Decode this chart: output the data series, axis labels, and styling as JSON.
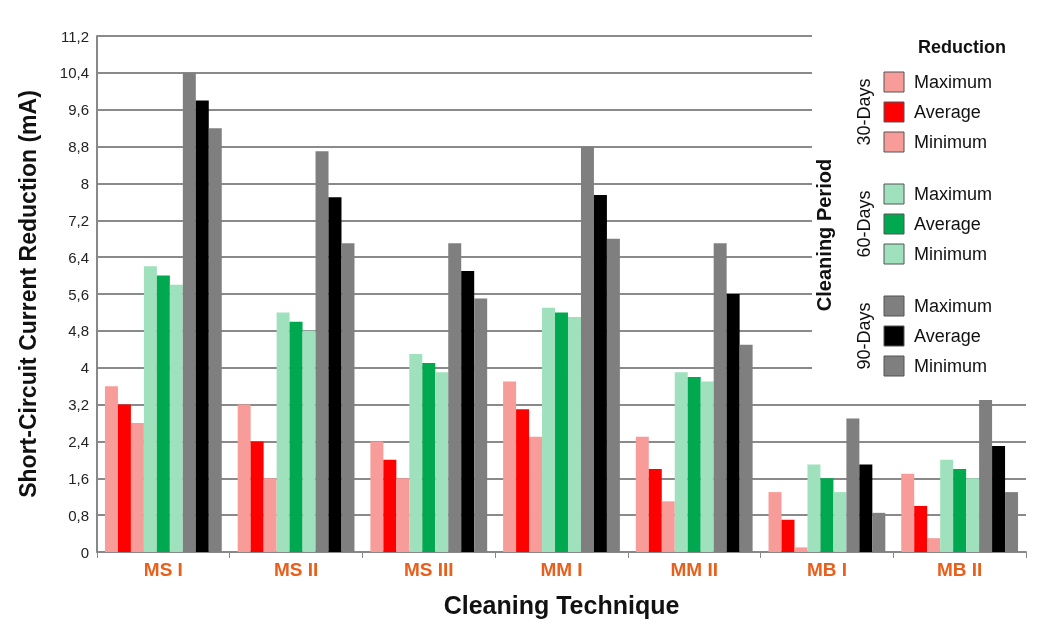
{
  "chart_data": {
    "type": "bar",
    "ylabel": "Short-Circuit Current Reduction (mA)",
    "xlabel": "Cleaning Technique",
    "legend_title": "Reduction",
    "annotations": [
      "Cleaning Period",
      "30-Days",
      "60-Days",
      "90-Days"
    ],
    "categories": [
      "MS I",
      "MS II",
      "MS III",
      "MM I",
      "MM II",
      "MB I",
      "MB II"
    ],
    "series": [
      {
        "name": "Maximum",
        "color": "#f79c98",
        "values": [
          3.6,
          3.2,
          2.4,
          3.7,
          2.5,
          1.3,
          1.7
        ]
      },
      {
        "name": "Average",
        "color": "#ff0000",
        "values": [
          3.2,
          2.4,
          2.0,
          3.1,
          1.8,
          0.7,
          1.0
        ]
      },
      {
        "name": "Minimum",
        "color": "#f79c98",
        "values": [
          2.8,
          1.6,
          1.6,
          2.5,
          1.1,
          0.1,
          0.3
        ]
      },
      {
        "name": "Maximum",
        "color": "#9fe1bd",
        "values": [
          6.2,
          5.2,
          4.3,
          5.3,
          3.9,
          1.9,
          2.0
        ]
      },
      {
        "name": "Average",
        "color": "#00a84f",
        "values": [
          6.0,
          5.0,
          4.1,
          5.2,
          3.8,
          1.6,
          1.8
        ]
      },
      {
        "name": "Minimum",
        "color": "#9fe1bd",
        "values": [
          5.8,
          4.8,
          3.9,
          5.1,
          3.7,
          1.3,
          1.6
        ]
      },
      {
        "name": "Maximum",
        "color": "#7f7f7f",
        "values": [
          10.4,
          8.7,
          6.7,
          8.8,
          6.7,
          2.9,
          3.3
        ]
      },
      {
        "name": "Average",
        "color": "#000000",
        "values": [
          9.8,
          7.7,
          6.1,
          7.75,
          5.6,
          1.9,
          2.3
        ]
      },
      {
        "name": "Minimum",
        "color": "#7f7f7f",
        "values": [
          9.2,
          6.7,
          5.5,
          6.8,
          4.5,
          0.85,
          1.3
        ]
      }
    ],
    "ylim": [
      0,
      11.2
    ],
    "yticks": [
      0,
      {
        "value": 0.8,
        "label": "0,8"
      },
      {
        "value": 1.6,
        "label": "1,6"
      },
      {
        "value": 2.4,
        "label": "2,4"
      },
      {
        "value": 3.2,
        "label": "3,2"
      },
      4,
      {
        "value": 4.8,
        "label": "4,8"
      },
      {
        "value": 5.6,
        "label": "5,6"
      },
      {
        "value": 6.4,
        "label": "6,4"
      },
      {
        "value": 7.2,
        "label": "7,2"
      },
      8,
      {
        "value": 8.8,
        "label": "8,8"
      },
      {
        "value": 9.6,
        "label": "9,6"
      },
      {
        "value": 10.4,
        "label": "10,4"
      },
      {
        "value": 11.2,
        "label": "11,2"
      }
    ],
    "grid": "y",
    "legend": "top right"
  }
}
